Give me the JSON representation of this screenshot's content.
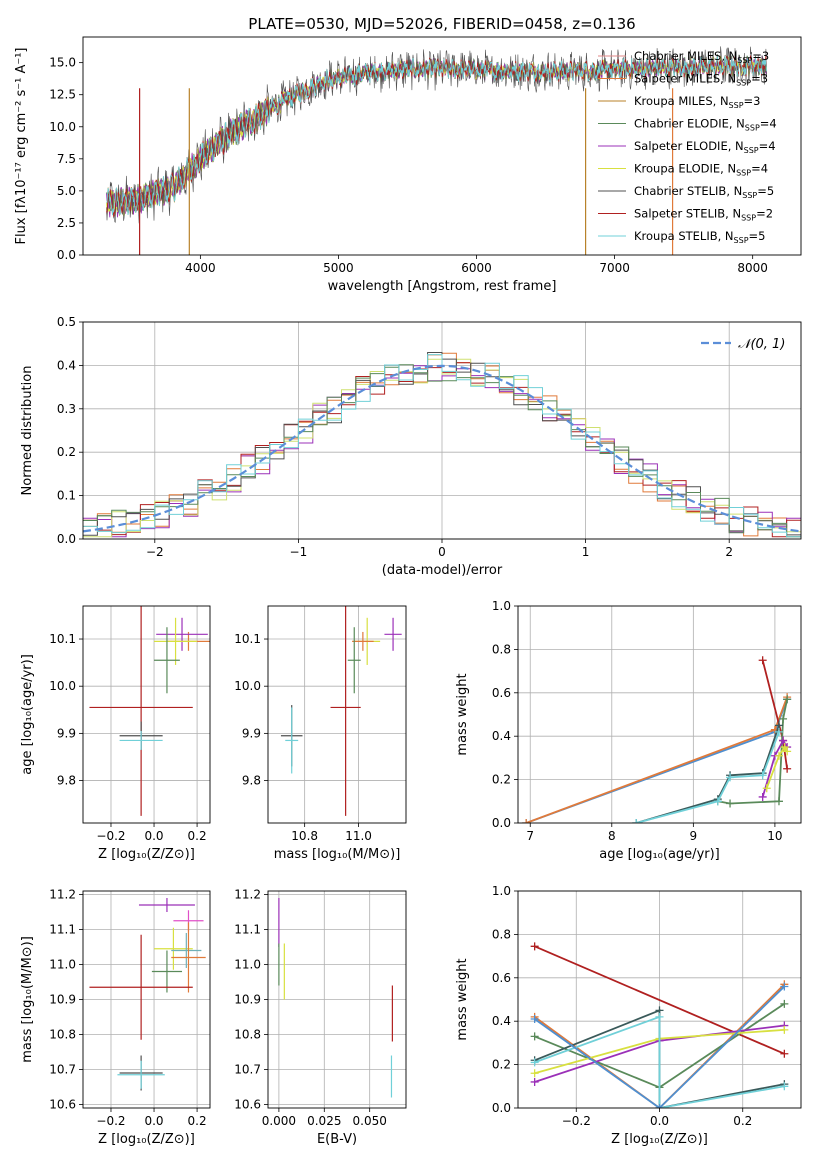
{
  "chart_data": [
    {
      "id": "spectrum",
      "type": "line",
      "title": "PLATE=0530, MJD=52026, FIBERID=0458, z=0.136",
      "xlabel": "wavelength [Angstrom, rest frame]",
      "ylabel": "Flux [fλ10⁻¹⁷ erg cm⁻² s⁻¹ A⁻¹]",
      "xlim": [
        3150,
        8350
      ],
      "ylim": [
        0,
        17
      ],
      "xticks": [
        4000,
        5000,
        6000,
        7000,
        8000
      ],
      "yticks": [
        0.0,
        2.5,
        5.0,
        7.5,
        10.0,
        12.5,
        15.0
      ],
      "continuum": [
        [
          3320,
          4.0
        ],
        [
          3500,
          4.2
        ],
        [
          3800,
          5.2
        ],
        [
          3950,
          7.0
        ],
        [
          4100,
          8.5
        ],
        [
          4300,
          10.0
        ],
        [
          4600,
          12.0
        ],
        [
          4900,
          13.6
        ],
        [
          5200,
          14.2
        ],
        [
          5500,
          14.5
        ],
        [
          5800,
          14.5
        ],
        [
          6100,
          14.4
        ],
        [
          6500,
          14.3
        ],
        [
          6900,
          14.4
        ],
        [
          7300,
          14.6
        ],
        [
          7700,
          14.7
        ],
        [
          8100,
          14.8
        ]
      ],
      "series": [
        {
          "name": "Chabrier MILES",
          "nssp": 3,
          "color": "#e08a8a"
        },
        {
          "name": "Salpeter MILES",
          "nssp": 3,
          "color": "#e07a3a"
        },
        {
          "name": "Kroupa MILES",
          "nssp": 3,
          "color": "#b8822a"
        },
        {
          "name": "Chabrier ELODIE",
          "nssp": 4,
          "color": "#5a8a5a"
        },
        {
          "name": "Salpeter ELODIE",
          "nssp": 4,
          "color": "#9b30b8"
        },
        {
          "name": "Kroupa ELODIE",
          "nssp": 4,
          "color": "#d8e040"
        },
        {
          "name": "Chabrier STELIB",
          "nssp": 5,
          "color": "#505050"
        },
        {
          "name": "Salpeter STELIB",
          "nssp": 2,
          "color": "#b02020"
        },
        {
          "name": "Kroupa STELIB",
          "nssp": 5,
          "color": "#70d0d8"
        }
      ],
      "legend_subscript": "SSP",
      "legend_placement": "right",
      "grid": false
    },
    {
      "id": "residuals",
      "type": "line",
      "xlabel": "(data-model)/error",
      "ylabel": "Normed distribution",
      "xlim": [
        -2.5,
        2.5
      ],
      "ylim": [
        0,
        0.5
      ],
      "xticks": [
        -2,
        -1,
        0,
        1,
        2
      ],
      "yticks": [
        0.0,
        0.1,
        0.2,
        0.3,
        0.4,
        0.5
      ],
      "reference_curve": {
        "name": "𝒩(0, 1)",
        "color": "#5b8ed8",
        "style": "dashed"
      },
      "histogram_colors": [
        "#e07a3a",
        "#9b30b8",
        "#b02020",
        "#cfe070",
        "#505050",
        "#5a8a5a",
        "#70d0d8"
      ],
      "legend_placement": "top-right",
      "grid": true
    },
    {
      "id": "age_vs_Z",
      "type": "scatter",
      "xlabel": "Z [log₁₀(Z/Z⊙)]",
      "ylabel": "age  [log₁₀(age/yr)]",
      "xlim": [
        -0.33,
        0.26
      ],
      "ylim": [
        9.71,
        10.17
      ],
      "xticks": [
        -0.2,
        0.0,
        0.2
      ],
      "yticks": [
        9.8,
        9.9,
        10.0,
        10.1
      ],
      "points": [
        {
          "x": 0.16,
          "y": 10.095,
          "xerr": 0.1,
          "yerr": 0.02,
          "color": "#e07a3a"
        },
        {
          "x": 0.13,
          "y": 10.11,
          "xerr": 0.12,
          "yerr": 0.035,
          "color": "#9b30b8"
        },
        {
          "x": 0.1,
          "y": 10.095,
          "xerr": 0.1,
          "yerr": 0.05,
          "color": "#d8e040"
        },
        {
          "x": 0.06,
          "y": 10.055,
          "xerr": 0.06,
          "yerr": 0.07,
          "color": "#5a8a5a"
        },
        {
          "x": -0.06,
          "y": 9.955,
          "xerr": 0.24,
          "yerr": 0.23,
          "color": "#b02020"
        },
        {
          "x": -0.06,
          "y": 9.895,
          "xerr": 0.1,
          "yerr": 0.03,
          "color": "#505050"
        },
        {
          "x": -0.06,
          "y": 9.885,
          "xerr": 0.1,
          "yerr": 0.02,
          "color": "#70d0d8"
        }
      ],
      "grid": true
    },
    {
      "id": "age_vs_mass",
      "type": "scatter",
      "xlabel": "mass [log₁₀(M/M⊙)]",
      "ylabel": "",
      "xlim": [
        10.58,
        11.22
      ],
      "ylim": [
        9.71,
        10.17
      ],
      "xticks": [
        10.75,
        11.0
      ],
      "yticks": [
        9.8,
        9.9,
        10.0,
        10.1
      ],
      "points": [
        {
          "x": 11.16,
          "y": 10.11,
          "xerr": 0.04,
          "yerr": 0.035,
          "color": "#9b30b8"
        },
        {
          "x": 11.04,
          "y": 10.095,
          "xerr": 0.06,
          "yerr": 0.05,
          "color": "#d8e040"
        },
        {
          "x": 11.02,
          "y": 10.095,
          "xerr": 0.05,
          "yerr": 0.02,
          "color": "#e07a3a"
        },
        {
          "x": 10.98,
          "y": 10.055,
          "xerr": 0.03,
          "yerr": 0.07,
          "color": "#5a8a5a"
        },
        {
          "x": 10.94,
          "y": 9.955,
          "xerr": 0.07,
          "yerr": 0.23,
          "color": "#b02020"
        },
        {
          "x": 10.69,
          "y": 9.895,
          "xerr": 0.05,
          "yerr": 0.065,
          "color": "#505050"
        },
        {
          "x": 10.69,
          "y": 9.885,
          "xerr": 0.03,
          "yerr": 0.07,
          "color": "#70d0d8"
        }
      ],
      "grid": true
    },
    {
      "id": "mass_weight_vs_age",
      "type": "line",
      "xlabel": "age  [log₁₀(age/yr)]",
      "ylabel": "mass weight",
      "xlim": [
        6.85,
        10.32
      ],
      "ylim": [
        0,
        1.0
      ],
      "xticks": [
        7,
        8,
        9,
        10
      ],
      "yticks": [
        0.0,
        0.2,
        0.4,
        0.6,
        0.8,
        1.0
      ],
      "series": [
        {
          "color": "#4f8fd0",
          "points": [
            [
              6.95,
              0.0
            ],
            [
              10.0,
              0.42
            ],
            [
              10.15,
              0.57
            ]
          ]
        },
        {
          "color": "#e07a3a",
          "points": [
            [
              6.95,
              0.0
            ],
            [
              10.0,
              0.43
            ],
            [
              10.15,
              0.58
            ]
          ]
        },
        {
          "color": "#b02020",
          "points": [
            [
              9.85,
              0.75
            ],
            [
              10.1,
              0.38
            ],
            [
              10.15,
              0.25
            ]
          ]
        },
        {
          "color": "#5a8a5a",
          "points": [
            [
              9.3,
              0.1
            ],
            [
              9.45,
              0.09
            ],
            [
              10.05,
              0.1
            ],
            [
              10.1,
              0.48
            ],
            [
              10.15,
              0.57
            ]
          ]
        },
        {
          "color": "#9b30b8",
          "points": [
            [
              9.85,
              0.12
            ],
            [
              10.0,
              0.31
            ],
            [
              10.1,
              0.38
            ],
            [
              10.15,
              0.35
            ]
          ]
        },
        {
          "color": "#d8e040",
          "points": [
            [
              9.9,
              0.16
            ],
            [
              10.05,
              0.31
            ],
            [
              10.12,
              0.35
            ],
            [
              10.15,
              0.33
            ]
          ]
        },
        {
          "color": "#3a5a5a",
          "points": [
            [
              8.3,
              0.0
            ],
            [
              9.3,
              0.11
            ],
            [
              9.45,
              0.22
            ],
            [
              9.85,
              0.23
            ],
            [
              10.05,
              0.45
            ]
          ]
        },
        {
          "color": "#70d0d8",
          "points": [
            [
              8.3,
              0.0
            ],
            [
              9.3,
              0.1
            ],
            [
              9.45,
              0.21
            ],
            [
              9.85,
              0.22
            ],
            [
              10.05,
              0.42
            ]
          ]
        }
      ],
      "grid": true
    },
    {
      "id": "mass_vs_Z",
      "type": "scatter",
      "xlabel": "Z [log₁₀(Z/Z⊙)]",
      "ylabel": "mass [log₁₀(M/M⊙)]",
      "xlim": [
        -0.33,
        0.26
      ],
      "ylim": [
        10.59,
        11.21
      ],
      "xticks": [
        -0.2,
        0.0,
        0.2
      ],
      "yticks": [
        10.6,
        10.7,
        10.8,
        10.9,
        11.0,
        11.1,
        11.2
      ],
      "points": [
        {
          "x": 0.06,
          "y": 11.17,
          "xerr": 0.13,
          "yerr": 0.02,
          "color": "#9b30b8"
        },
        {
          "x": 0.16,
          "y": 11.125,
          "xerr": 0.07,
          "yerr": 0.03,
          "color": "#e050c8"
        },
        {
          "x": 0.09,
          "y": 11.045,
          "xerr": 0.09,
          "yerr": 0.06,
          "color": "#d8e040"
        },
        {
          "x": 0.15,
          "y": 11.04,
          "xerr": 0.07,
          "yerr": 0.05,
          "color": "#70b0b8"
        },
        {
          "x": 0.16,
          "y": 11.02,
          "xerr": 0.08,
          "yerr": 0.1,
          "color": "#e07a3a"
        },
        {
          "x": 0.06,
          "y": 10.98,
          "xerr": 0.07,
          "yerr": 0.06,
          "color": "#5a8a5a"
        },
        {
          "x": -0.06,
          "y": 10.935,
          "xerr": 0.24,
          "yerr": 0.15,
          "color": "#b02020"
        },
        {
          "x": -0.06,
          "y": 10.69,
          "xerr": 0.1,
          "yerr": 0.05,
          "color": "#505050"
        },
        {
          "x": -0.06,
          "y": 10.685,
          "xerr": 0.11,
          "yerr": 0.04,
          "color": "#70d0d8"
        }
      ],
      "grid": true
    },
    {
      "id": "mass_vs_ebv",
      "type": "scatter",
      "xlabel": "E(B-V)",
      "ylabel": "",
      "xlim": [
        -0.006,
        0.07
      ],
      "ylim": [
        10.59,
        11.21
      ],
      "xticks": [
        0.0,
        0.025,
        0.05
      ],
      "yticks": [
        10.6,
        10.7,
        10.8,
        10.9,
        11.0,
        11.1,
        11.2
      ],
      "points": [
        {
          "x": 0.0,
          "y": 11.12,
          "yerr": 0.07,
          "color": "#9b30b8"
        },
        {
          "x": 0.0,
          "y": 11.0,
          "yerr": 0.06,
          "color": "#5a8a5a"
        },
        {
          "x": 0.003,
          "y": 10.98,
          "yerr": 0.08,
          "color": "#d8e040"
        },
        {
          "x": 0.0625,
          "y": 10.86,
          "yerr": 0.08,
          "color": "#b02020"
        },
        {
          "x": 0.062,
          "y": 10.68,
          "yerr": 0.06,
          "color": "#70d0d8"
        }
      ],
      "grid": true
    },
    {
      "id": "mass_weight_vs_Z",
      "type": "line",
      "xlabel": "Z [log₁₀(Z/Z⊙)]",
      "ylabel": "mass weight",
      "xlim": [
        -0.34,
        0.34
      ],
      "ylim": [
        0,
        1.0
      ],
      "xticks": [
        -0.2,
        0.0,
        0.2
      ],
      "yticks": [
        0.0,
        0.2,
        0.4,
        0.6,
        0.8,
        1.0
      ],
      "series": [
        {
          "color": "#b02020",
          "points": [
            [
              -0.3,
              0.745
            ],
            [
              0.3,
              0.25
            ]
          ]
        },
        {
          "color": "#e07a3a",
          "points": [
            [
              -0.3,
              0.42
            ],
            [
              0.0,
              0.0
            ],
            [
              0.3,
              0.57
            ]
          ]
        },
        {
          "color": "#5a8a5a",
          "points": [
            [
              -0.3,
              0.33
            ],
            [
              0.0,
              0.095
            ],
            [
              0.3,
              0.48
            ]
          ]
        },
        {
          "color": "#9b30b8",
          "points": [
            [
              -0.3,
              0.12
            ],
            [
              0.0,
              0.31
            ],
            [
              0.3,
              0.38
            ]
          ]
        },
        {
          "color": "#d8e040",
          "points": [
            [
              -0.3,
              0.16
            ],
            [
              0.0,
              0.32
            ],
            [
              0.3,
              0.36
            ]
          ]
        },
        {
          "color": "#3a5a5a",
          "points": [
            [
              -0.3,
              0.22
            ],
            [
              0.0,
              0.45
            ],
            [
              0.0,
              0.0
            ],
            [
              0.3,
              0.11
            ]
          ]
        },
        {
          "color": "#70d0d8",
          "points": [
            [
              -0.3,
              0.21
            ],
            [
              0.0,
              0.42
            ],
            [
              0.0,
              0.0
            ],
            [
              0.3,
              0.1
            ]
          ]
        },
        {
          "color": "#4f8fd0",
          "points": [
            [
              -0.3,
              0.41
            ],
            [
              0.0,
              0.0
            ],
            [
              0.3,
              0.56
            ]
          ]
        }
      ],
      "grid": true
    }
  ]
}
